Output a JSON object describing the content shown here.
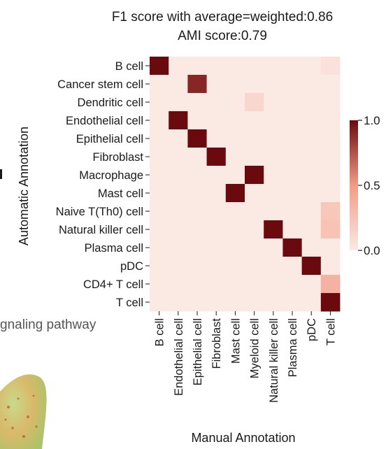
{
  "chart_data": {
    "type": "heatmap",
    "title_lines": [
      "F1 score with average=weighted:0.86",
      "AMI score:0.79"
    ],
    "ylabel": "Automatic Annotation",
    "xlabel": "Manual Annotation",
    "rows": [
      "B cell",
      "Cancer stem cell",
      "Dendritic cell",
      "Endothelial cell",
      "Epithelial cell",
      "Fibroblast",
      "Macrophage",
      "Mast cell",
      "Naive T(Th0) cell",
      "Natural killer cell",
      "Plasma cell",
      "pDC",
      "CD4+ T cell",
      "T cell"
    ],
    "columns": [
      "B cell",
      "Endothelial cell",
      "Epithelial cell",
      "Fibroblast",
      "Mast cell",
      "Myeloid cell",
      "Natural killer cell",
      "Plasma cell",
      "pDC",
      "T cell"
    ],
    "values": [
      [
        1.0,
        0,
        0,
        0,
        0,
        0,
        0,
        0,
        0,
        0.05
      ],
      [
        0,
        0,
        0.9,
        0,
        0,
        0,
        0,
        0,
        0,
        0
      ],
      [
        0,
        0,
        0,
        0,
        0,
        0.12,
        0,
        0,
        0,
        0
      ],
      [
        0,
        1.0,
        0,
        0,
        0,
        0,
        0,
        0,
        0,
        0
      ],
      [
        0,
        0,
        1.0,
        0,
        0,
        0,
        0,
        0,
        0,
        0
      ],
      [
        0,
        0,
        0,
        1.0,
        0,
        0,
        0,
        0,
        0,
        0
      ],
      [
        0,
        0,
        0,
        0,
        0,
        1.0,
        0,
        0,
        0,
        0
      ],
      [
        0,
        0,
        0,
        0,
        1.0,
        0,
        0,
        0,
        0,
        0
      ],
      [
        0,
        0,
        0,
        0,
        0,
        0,
        0,
        0,
        0,
        0.22
      ],
      [
        0,
        0,
        0,
        0,
        0,
        0,
        1.0,
        0,
        0,
        0.25
      ],
      [
        0,
        0,
        0,
        0,
        0,
        0,
        0,
        1.0,
        0,
        0
      ],
      [
        0,
        0,
        0,
        0,
        0,
        0,
        0,
        0,
        1.0,
        0
      ],
      [
        0,
        0,
        0,
        0,
        0,
        0,
        0,
        0,
        0,
        0.35
      ],
      [
        0,
        0,
        0,
        0,
        0,
        0,
        0,
        0,
        0,
        1.0
      ]
    ],
    "colorbar": {
      "min": 0,
      "max": 1,
      "ticks": [
        "0.0",
        "0.5",
        "1.0"
      ],
      "tick_values": [
        0,
        0.5,
        1
      ]
    },
    "colors": {
      "low": "#fbe9e3",
      "mid": "#f19c86",
      "high": "#6b0a0e"
    }
  },
  "fragments": {
    "left_text": "gnaling pathway"
  }
}
